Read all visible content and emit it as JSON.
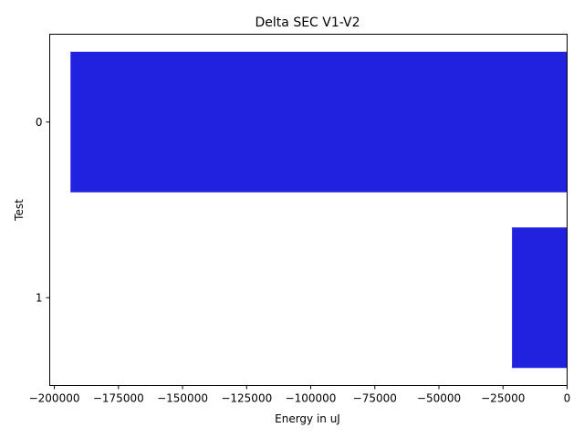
{
  "chart_data": {
    "type": "bar",
    "orientation": "horizontal",
    "title": "Delta SEC V1-V2",
    "xlabel": "Energy in uJ",
    "ylabel": "Test",
    "categories": [
      "0",
      "1"
    ],
    "values": [
      -193700,
      -21500
    ],
    "xlim": [
      -201800,
      0
    ],
    "xticks": [
      -200000,
      -175000,
      -150000,
      -125000,
      -100000,
      -75000,
      -50000,
      -25000,
      0
    ],
    "xtick_labels": [
      "−200000",
      "−175000",
      "−150000",
      "−125000",
      "−100000",
      "−75000",
      "−50000",
      "−25000",
      "0"
    ],
    "bar_color": "#2121e0",
    "grid": false,
    "legend": "none"
  }
}
